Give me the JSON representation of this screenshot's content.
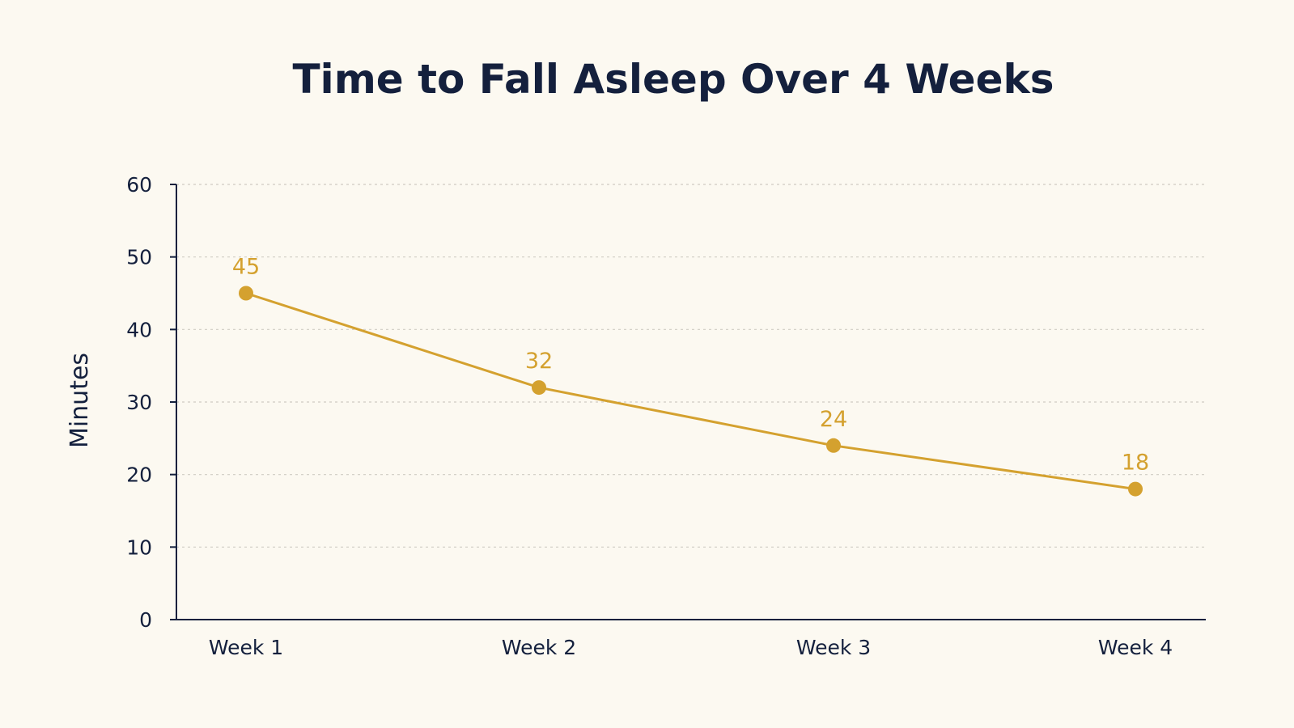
{
  "colors": {
    "background": "#fcf9f1",
    "text": "#14203d",
    "series": "#d4a12f",
    "grid": "#cfccc3"
  },
  "chart_data": {
    "type": "line",
    "title": "Time to Fall Asleep Over 4 Weeks",
    "xlabel": "",
    "ylabel": "Minutes",
    "categories": [
      "Week 1",
      "Week 2",
      "Week 3",
      "Week 4"
    ],
    "yticks": [
      "0",
      "10",
      "20",
      "30",
      "40",
      "50",
      "60"
    ],
    "ylim": [
      0,
      60
    ],
    "grid": true,
    "legend": "none",
    "series": [
      {
        "values": [
          45,
          32,
          24,
          18
        ],
        "data_labels": [
          "45",
          "32",
          "24",
          "18"
        ]
      }
    ]
  }
}
